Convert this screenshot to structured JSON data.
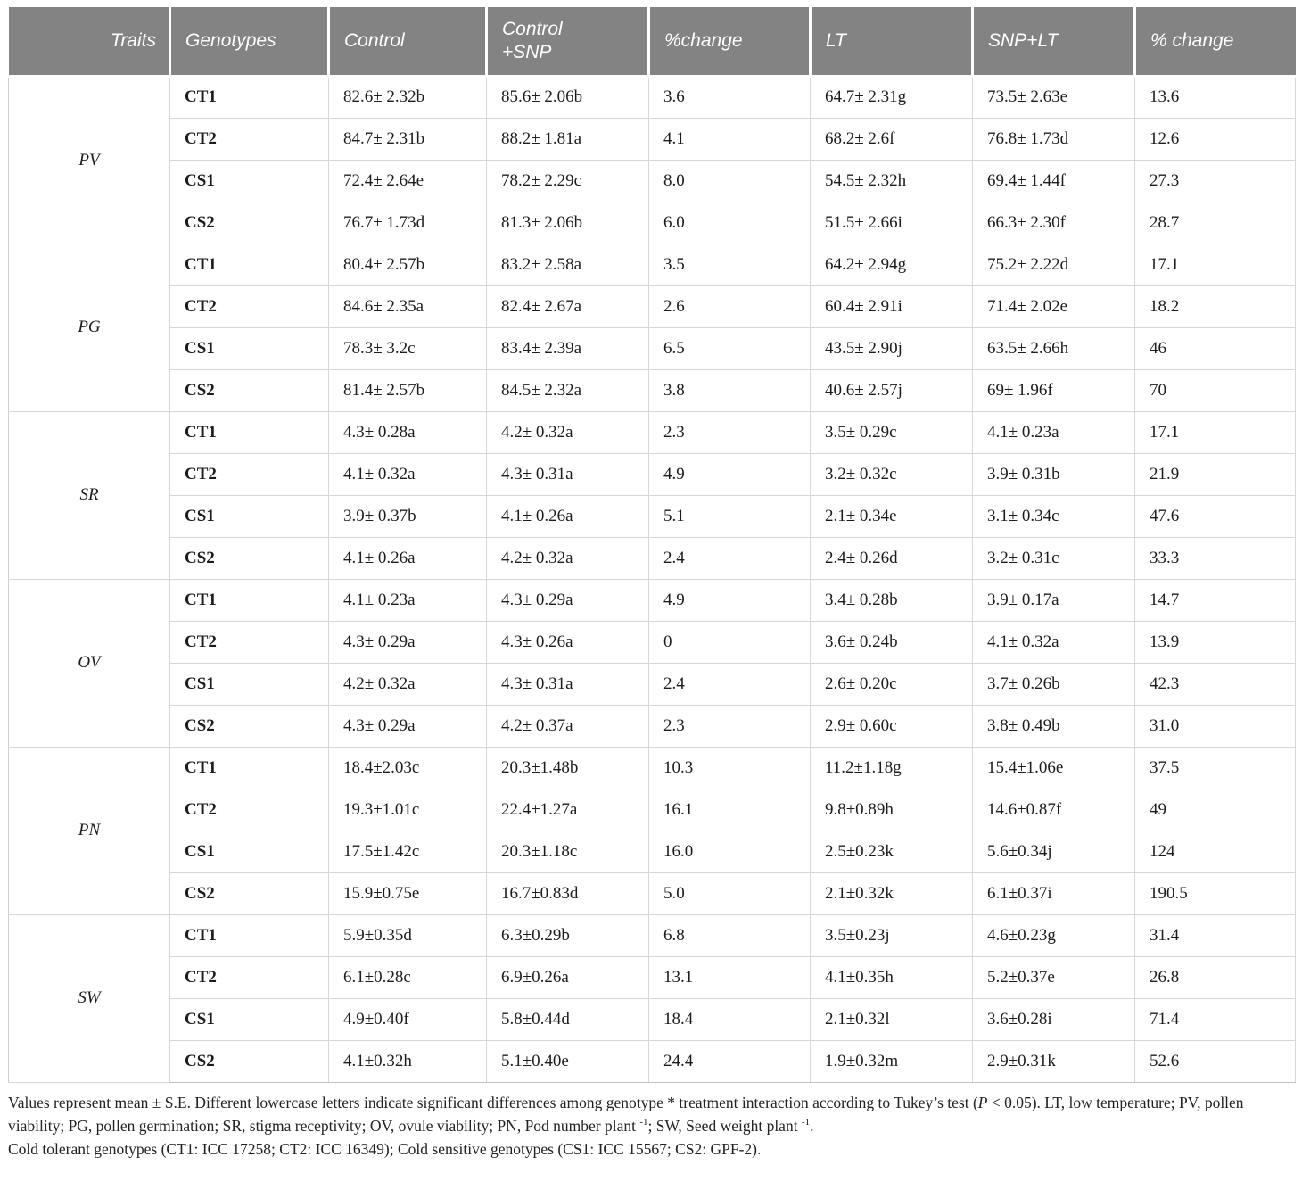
{
  "colors": {
    "header_bg": "#838383",
    "header_text": "#ffffff",
    "body_text": "#1c1c1c",
    "row_border": "#d7d7d7",
    "block_border": "#b9b9b9"
  },
  "table": {
    "headers": [
      "Traits",
      "Genotypes",
      "Control",
      "Control\n+SNP",
      "%change",
      "LT",
      "SNP+LT",
      "% change"
    ],
    "groups": [
      {
        "trait": "PV",
        "rows": [
          {
            "genotype": "CT1",
            "cells": [
              "82.6± 2.32b",
              "85.6± 2.06b",
              "3.6",
              "64.7± 2.31g",
              "73.5± 2.63e",
              "13.6"
            ]
          },
          {
            "genotype": "CT2",
            "cells": [
              "84.7± 2.31b",
              "88.2± 1.81a",
              "4.1",
              "68.2± 2.6f",
              "76.8± 1.73d",
              "12.6"
            ]
          },
          {
            "genotype": "CS1",
            "cells": [
              "72.4± 2.64e",
              "78.2± 2.29c",
              "8.0",
              "54.5± 2.32h",
              "69.4± 1.44f",
              "27.3"
            ]
          },
          {
            "genotype": "CS2",
            "cells": [
              "76.7± 1.73d",
              "81.3± 2.06b",
              "6.0",
              "51.5± 2.66i",
              "66.3± 2.30f",
              "28.7"
            ]
          }
        ]
      },
      {
        "trait": "PG",
        "rows": [
          {
            "genotype": "CT1",
            "cells": [
              "80.4± 2.57b",
              "83.2± 2.58a",
              "3.5",
              "64.2± 2.94g",
              "75.2± 2.22d",
              "17.1"
            ]
          },
          {
            "genotype": "CT2",
            "cells": [
              "84.6± 2.35a",
              "82.4± 2.67a",
              "2.6",
              "60.4± 2.91i",
              "71.4± 2.02e",
              "18.2"
            ]
          },
          {
            "genotype": "CS1",
            "cells": [
              "78.3± 3.2c",
              "83.4± 2.39a",
              "6.5",
              "43.5± 2.90j",
              "63.5± 2.66h",
              "46"
            ]
          },
          {
            "genotype": "CS2",
            "cells": [
              "81.4± 2.57b",
              "84.5± 2.32a",
              "3.8",
              "40.6± 2.57j",
              "69± 1.96f",
              "70"
            ]
          }
        ]
      },
      {
        "trait": "SR",
        "rows": [
          {
            "genotype": "CT1",
            "cells": [
              "4.3± 0.28a",
              "4.2± 0.32a",
              "2.3",
              "3.5± 0.29c",
              "4.1± 0.23a",
              "17.1"
            ]
          },
          {
            "genotype": "CT2",
            "cells": [
              "4.1± 0.32a",
              "4.3± 0.31a",
              "4.9",
              "3.2± 0.32c",
              "3.9± 0.31b",
              "21.9"
            ]
          },
          {
            "genotype": "CS1",
            "cells": [
              "3.9± 0.37b",
              "4.1± 0.26a",
              "5.1",
              "2.1± 0.34e",
              "3.1± 0.34c",
              "47.6"
            ]
          },
          {
            "genotype": "CS2",
            "cells": [
              "4.1± 0.26a",
              "4.2± 0.32a",
              "2.4",
              "2.4± 0.26d",
              "3.2± 0.31c",
              "33.3"
            ]
          }
        ]
      },
      {
        "trait": "OV",
        "rows": [
          {
            "genotype": "CT1",
            "cells": [
              "4.1± 0.23a",
              "4.3± 0.29a",
              "4.9",
              "3.4± 0.28b",
              "3.9± 0.17a",
              "14.7"
            ]
          },
          {
            "genotype": "CT2",
            "cells": [
              "4.3± 0.29a",
              "4.3± 0.26a",
              "0",
              "3.6± 0.24b",
              "4.1± 0.32a",
              "13.9"
            ]
          },
          {
            "genotype": "CS1",
            "cells": [
              "4.2± 0.32a",
              "4.3± 0.31a",
              "2.4",
              "2.6± 0.20c",
              "3.7± 0.26b",
              "42.3"
            ]
          },
          {
            "genotype": "CS2",
            "cells": [
              "4.3± 0.29a",
              "4.2± 0.37a",
              "2.3",
              "2.9± 0.60c",
              "3.8± 0.49b",
              "31.0"
            ]
          }
        ]
      },
      {
        "trait": "PN",
        "rows": [
          {
            "genotype": "CT1",
            "cells": [
              "18.4±2.03c",
              "20.3±1.48b",
              "10.3",
              "11.2±1.18g",
              "15.4±1.06e",
              "37.5"
            ]
          },
          {
            "genotype": "CT2",
            "cells": [
              "19.3±1.01c",
              "22.4±1.27a",
              "16.1",
              "9.8±0.89h",
              "14.6±0.87f",
              "49"
            ]
          },
          {
            "genotype": "CS1",
            "cells": [
              "17.5±1.42c",
              "20.3±1.18c",
              "16.0",
              "2.5±0.23k",
              "5.6±0.34j",
              "124"
            ]
          },
          {
            "genotype": "CS2",
            "cells": [
              "15.9±0.75e",
              "16.7±0.83d",
              "5.0",
              "2.1±0.32k",
              "6.1±0.37i",
              "190.5"
            ]
          }
        ]
      },
      {
        "trait": "SW",
        "rows": [
          {
            "genotype": "CT1",
            "cells": [
              "5.9±0.35d",
              "6.3±0.29b",
              "6.8",
              "3.5±0.23j",
              "4.6±0.23g",
              "31.4"
            ]
          },
          {
            "genotype": "CT2",
            "cells": [
              "6.1±0.28c",
              "6.9±0.26a",
              "13.1",
              "4.1±0.35h",
              "5.2±0.37e",
              "26.8"
            ]
          },
          {
            "genotype": "CS1",
            "cells": [
              "4.9±0.40f",
              "5.8±0.44d",
              "18.4",
              "2.1±0.32l",
              "3.6±0.28i",
              "71.4"
            ]
          },
          {
            "genotype": "CS2",
            "cells": [
              "4.1±0.32h",
              "5.1±0.40e",
              "24.4",
              "1.9±0.32m",
              "2.9±0.31k",
              "52.6"
            ]
          }
        ]
      }
    ]
  },
  "footnotes": {
    "line1_parts": [
      {
        "text": "Values represent mean ± S.E. Different lowercase letters indicate significant differences among genotype * treatment interaction according to Tukey’s test (",
        "style": "normal"
      },
      {
        "text": "P",
        "style": "italic"
      },
      {
        "text": " < 0.05). LT, low temperature; PV, pollen viability; PG, pollen germination; SR, stigma receptivity; OV, ovule viability; PN, Pod number plant ",
        "style": "normal"
      },
      {
        "text": "-1",
        "style": "sup"
      },
      {
        "text": "; SW, Seed weight plant ",
        "style": "normal"
      },
      {
        "text": "-1",
        "style": "sup"
      },
      {
        "text": ".",
        "style": "normal"
      }
    ],
    "line2": "Cold tolerant genotypes (CT1: ICC 17258; CT2: ICC 16349); Cold sensitive genotypes (CS1: ICC 15567; CS2: GPF-2)."
  }
}
